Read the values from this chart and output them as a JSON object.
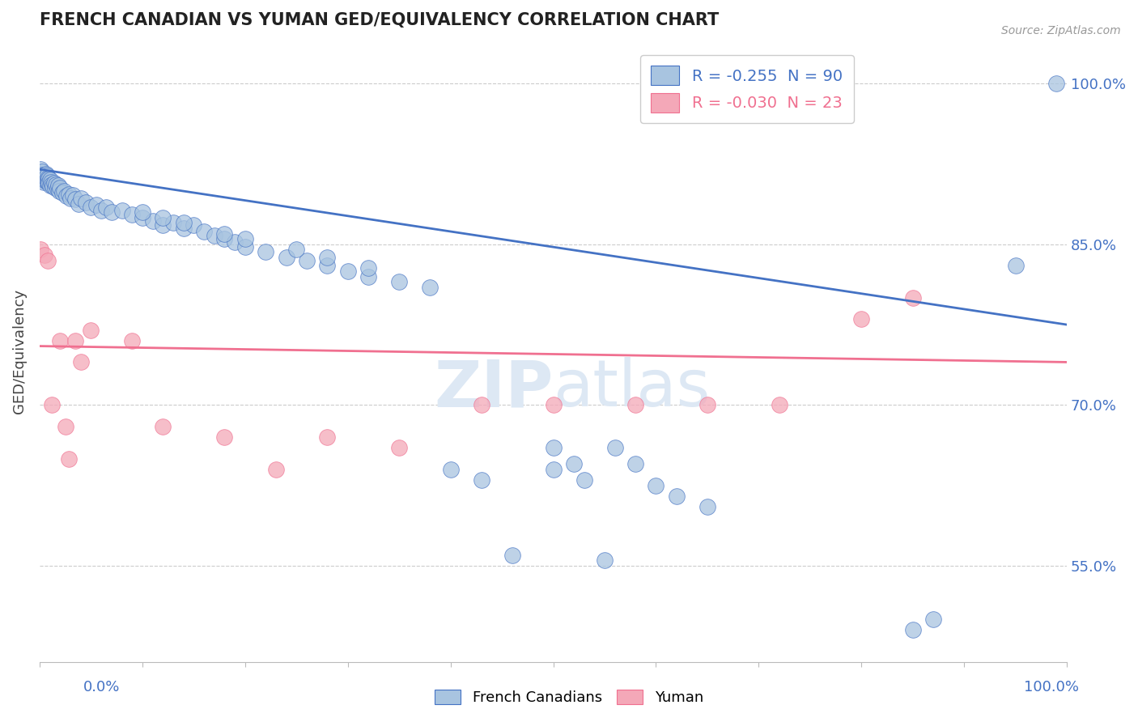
{
  "title": "FRENCH CANADIAN VS YUMAN GED/EQUIVALENCY CORRELATION CHART",
  "source_text": "Source: ZipAtlas.com",
  "ylabel": "GED/Equivalency",
  "yticks": [
    0.55,
    0.7,
    0.85,
    1.0
  ],
  "ytick_labels": [
    "55.0%",
    "70.0%",
    "85.0%",
    "100.0%"
  ],
  "xlim": [
    0.0,
    1.0
  ],
  "ylim": [
    0.46,
    1.04
  ],
  "legend_blue_R": "-0.255",
  "legend_blue_N": "90",
  "legend_pink_R": "-0.030",
  "legend_pink_N": "23",
  "french_canadian_x": [
    0.001,
    0.002,
    0.002,
    0.003,
    0.003,
    0.004,
    0.004,
    0.005,
    0.005,
    0.006,
    0.006,
    0.007,
    0.007,
    0.008,
    0.008,
    0.009,
    0.009,
    0.01,
    0.01,
    0.011,
    0.012,
    0.013,
    0.014,
    0.015,
    0.016,
    0.017,
    0.018,
    0.019,
    0.02,
    0.022,
    0.024,
    0.026,
    0.028,
    0.03,
    0.032,
    0.035,
    0.038,
    0.04,
    0.045,
    0.05,
    0.055,
    0.06,
    0.065,
    0.07,
    0.08,
    0.09,
    0.1,
    0.11,
    0.12,
    0.13,
    0.14,
    0.15,
    0.16,
    0.17,
    0.18,
    0.19,
    0.2,
    0.22,
    0.24,
    0.26,
    0.28,
    0.3,
    0.32,
    0.35,
    0.38,
    0.4,
    0.43,
    0.46,
    0.5,
    0.53,
    0.56,
    0.58,
    0.6,
    0.62,
    0.65,
    0.5,
    0.52,
    0.55,
    0.85,
    0.87,
    0.1,
    0.12,
    0.14,
    0.18,
    0.2,
    0.25,
    0.28,
    0.32,
    0.95,
    0.99
  ],
  "french_canadian_y": [
    0.92,
    0.918,
    0.915,
    0.912,
    0.91,
    0.913,
    0.908,
    0.915,
    0.911,
    0.909,
    0.916,
    0.914,
    0.91,
    0.912,
    0.908,
    0.911,
    0.907,
    0.91,
    0.905,
    0.908,
    0.906,
    0.904,
    0.907,
    0.903,
    0.906,
    0.902,
    0.905,
    0.9,
    0.903,
    0.898,
    0.9,
    0.895,
    0.897,
    0.893,
    0.896,
    0.892,
    0.888,
    0.893,
    0.889,
    0.885,
    0.887,
    0.882,
    0.885,
    0.88,
    0.882,
    0.878,
    0.875,
    0.872,
    0.868,
    0.87,
    0.865,
    0.868,
    0.862,
    0.858,
    0.855,
    0.852,
    0.848,
    0.843,
    0.838,
    0.835,
    0.83,
    0.825,
    0.82,
    0.815,
    0.81,
    0.64,
    0.63,
    0.56,
    0.64,
    0.63,
    0.66,
    0.645,
    0.625,
    0.615,
    0.605,
    0.66,
    0.645,
    0.555,
    0.49,
    0.5,
    0.88,
    0.875,
    0.87,
    0.86,
    0.855,
    0.845,
    0.838,
    0.828,
    0.83,
    1.0
  ],
  "yuman_x": [
    0.001,
    0.005,
    0.008,
    0.012,
    0.02,
    0.025,
    0.028,
    0.035,
    0.04,
    0.05,
    0.09,
    0.12,
    0.18,
    0.23,
    0.28,
    0.35,
    0.43,
    0.5,
    0.58,
    0.65,
    0.72,
    0.8,
    0.85
  ],
  "yuman_y": [
    0.845,
    0.84,
    0.835,
    0.7,
    0.76,
    0.68,
    0.65,
    0.76,
    0.74,
    0.77,
    0.76,
    0.68,
    0.67,
    0.64,
    0.67,
    0.66,
    0.7,
    0.7,
    0.7,
    0.7,
    0.7,
    0.78,
    0.8
  ],
  "trend_blue_x0": 0.0,
  "trend_blue_y0": 0.92,
  "trend_blue_x1": 1.0,
  "trend_blue_y1": 0.775,
  "trend_pink_x0": 0.0,
  "trend_pink_y0": 0.755,
  "trend_pink_x1": 1.0,
  "trend_pink_y1": 0.74,
  "bg_color": "#ffffff",
  "scatter_blue": "#a8c4e0",
  "scatter_pink": "#f4a8b8",
  "trend_blue": "#4472c4",
  "trend_pink": "#f07090",
  "grid_color": "#cccccc",
  "title_color": "#222222",
  "axis_label_color": "#4472c4",
  "source_color": "#999999",
  "watermark_color": "#dde8f4"
}
